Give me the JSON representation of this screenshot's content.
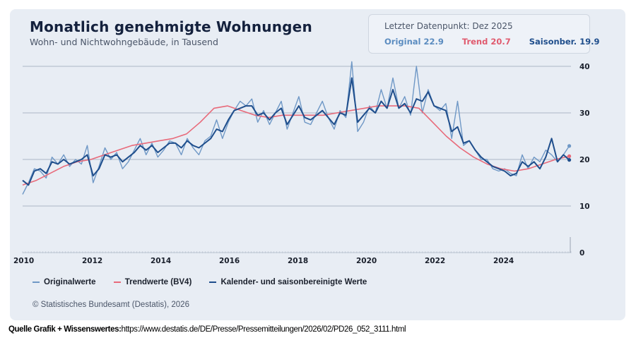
{
  "header": {
    "title": "Monatlich genehmigte Wohnungen",
    "subtitle": "Wohn- und Nichtwohngebäude, in Tausend"
  },
  "infobox": {
    "heading": "Letzter Datenpunkt: Dez 2025",
    "original": "Original 22.9",
    "trend": "Trend 20.7",
    "saison": "Saisonber. 19.9"
  },
  "legend": {
    "original": "Originalwerte",
    "trend": "Trendwerte (BV4)",
    "saison": "Kalender- und saisonbereinigte Werte"
  },
  "copyright": "© Statistisches Bundesamt (Destatis), 2026",
  "source": {
    "label": "Quelle Grafik + Wissenswertes:",
    "url": "https://www.destatis.de/DE/Presse/Pressemitteilungen/2026/02/PD26_052_3111.html"
  },
  "colors": {
    "original": "#6f98c6",
    "trend": "#e86a7a",
    "saison": "#1f4e8c",
    "grid": "#b9c2cf"
  },
  "chart_data": {
    "type": "line",
    "title": "Monatlich genehmigte Wohnungen",
    "subtitle": "Wohn- und Nichtwohngebäude, in Tausend",
    "xlabel": "",
    "ylabel": "",
    "xlim": [
      2010,
      2026
    ],
    "ylim": [
      0,
      40
    ],
    "x_ticks": [
      "2010",
      "2012",
      "2014",
      "2016",
      "2018",
      "2020",
      "2022",
      "2024"
    ],
    "y_ticks": [
      "0",
      "10",
      "20",
      "30",
      "40"
    ],
    "grid": true,
    "y_axis_position": "right",
    "legend_position": "bottom",
    "series": [
      {
        "name": "Originalwerte",
        "x_start": 2010.0,
        "x_step": 0.1667,
        "values": [
          12.5,
          15.0,
          18.0,
          17.5,
          16.0,
          20.5,
          19.0,
          21.0,
          18.5,
          20.0,
          19.0,
          23.0,
          15.0,
          18.5,
          22.5,
          20.0,
          21.5,
          18.0,
          19.5,
          22.0,
          24.5,
          21.0,
          23.5,
          20.5,
          22.0,
          24.0,
          23.5,
          21.0,
          24.5,
          22.5,
          21.0,
          24.0,
          25.0,
          28.5,
          24.5,
          28.0,
          30.5,
          32.5,
          31.5,
          33.0,
          28.0,
          30.5,
          27.5,
          30.0,
          32.5,
          26.5,
          30.0,
          33.5,
          28.0,
          27.5,
          30.0,
          32.5,
          29.0,
          26.5,
          30.5,
          29.0,
          41.0,
          26.0,
          28.0,
          31.5,
          30.0,
          35.0,
          31.0,
          37.5,
          31.0,
          33.5,
          29.5,
          40.0,
          30.0,
          35.0,
          31.5,
          30.5,
          32.0,
          24.5,
          32.5,
          23.0,
          24.0,
          22.0,
          20.0,
          20.0,
          18.0,
          17.5,
          18.0,
          17.0,
          16.5,
          21.0,
          18.0,
          20.5,
          19.5,
          22.0,
          21.0,
          19.5,
          21.0,
          22.9
        ]
      },
      {
        "name": "Trendwerte (BV4)",
        "x_start": 2010.0,
        "x_step": 0.5,
        "values": [
          14.5,
          15.5,
          17.0,
          18.5,
          19.5,
          20.0,
          21.0,
          22.0,
          23.0,
          23.5,
          24.0,
          24.5,
          25.5,
          28.0,
          31.0,
          31.5,
          30.5,
          29.5,
          29.0,
          29.5,
          29.5,
          29.5,
          29.5,
          30.0,
          30.5,
          31.0,
          31.5,
          31.5,
          31.5,
          31.0,
          28.0,
          25.0,
          22.5,
          20.5,
          19.0,
          18.0,
          17.5,
          18.0,
          19.0,
          20.0,
          20.7
        ]
      },
      {
        "name": "Kalender- und saisonbereinigte Werte",
        "x_start": 2010.0,
        "x_step": 0.1667,
        "values": [
          15.5,
          14.5,
          17.5,
          18.0,
          17.0,
          19.5,
          19.0,
          20.0,
          19.0,
          19.5,
          20.0,
          21.0,
          16.5,
          18.0,
          21.0,
          20.5,
          21.0,
          19.5,
          20.5,
          21.5,
          23.0,
          22.0,
          23.0,
          21.5,
          22.5,
          23.5,
          23.5,
          22.5,
          24.0,
          23.0,
          22.5,
          23.5,
          24.5,
          26.5,
          26.0,
          28.5,
          30.5,
          31.0,
          31.5,
          31.5,
          29.5,
          30.0,
          28.5,
          30.0,
          31.0,
          27.5,
          29.5,
          31.5,
          29.0,
          28.5,
          29.5,
          30.5,
          29.0,
          27.5,
          30.0,
          29.5,
          37.5,
          28.0,
          29.5,
          31.0,
          30.0,
          32.5,
          31.0,
          35.0,
          31.0,
          32.0,
          30.0,
          33.0,
          32.5,
          34.5,
          31.5,
          31.0,
          30.5,
          26.0,
          27.0,
          23.5,
          24.0,
          22.0,
          20.5,
          19.5,
          18.5,
          18.0,
          17.5,
          16.5,
          17.0,
          19.5,
          18.5,
          19.5,
          18.0,
          20.5,
          24.5,
          19.5,
          21.0,
          19.9
        ]
      }
    ],
    "last_values": {
      "date": "Dez 2025",
      "original": 22.9,
      "trend": 20.7,
      "saison": 19.9
    }
  }
}
